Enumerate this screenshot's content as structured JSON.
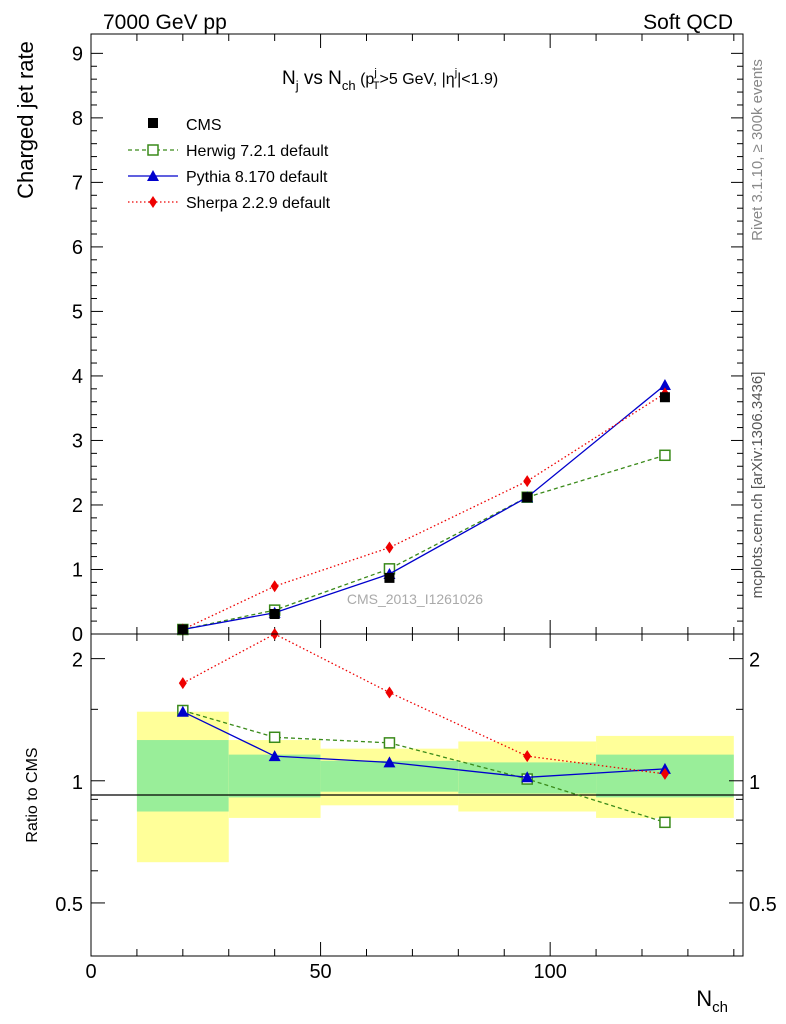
{
  "header": {
    "left": "7000 GeV pp",
    "right": "Soft QCD"
  },
  "side_labels": {
    "rivet": "Rivet 3.1.10, ≥ 300k events",
    "mcplots": "mcplots.cern.ch [arXiv:1306.3436]"
  },
  "watermark": "CMS_2013_I1261026",
  "title": {
    "n1": "N",
    "n1_sub": "j",
    "vs": " vs N",
    "n2_sub": "ch",
    "cut_open": " (p",
    "cut_sup": "j",
    "cut_sub": "T",
    "cut_mid": ">5 GeV, |η",
    "cut_sup2": "j",
    "cut_close": "|<1.9)"
  },
  "colors": {
    "cms": "#000000",
    "herwig": "#3a8a1a",
    "pythia": "#0000cc",
    "sherpa": "#ee0000",
    "band_outer": "#ffff99",
    "band_inner": "#99ee99"
  },
  "chart_data": [
    {
      "type": "line",
      "panel": "main",
      "ylabel": "Charged jet rate",
      "xlim": [
        0,
        142
      ],
      "ylim": [
        0,
        9.3
      ],
      "yticks": [
        0,
        1,
        2,
        3,
        4,
        5,
        6,
        7,
        8,
        9
      ],
      "x": [
        20,
        40,
        65,
        95,
        125
      ],
      "series": [
        {
          "key": "cms",
          "name": "CMS",
          "values": [
            0.07,
            0.31,
            0.87,
            2.12,
            3.67
          ]
        },
        {
          "key": "herwig",
          "name": "Herwig 7.2.1 default",
          "values": [
            0.07,
            0.37,
            1.01,
            2.12,
            2.77
          ]
        },
        {
          "key": "pythia",
          "name": "Pythia 8.170 default",
          "values": [
            0.07,
            0.33,
            0.93,
            2.12,
            3.86
          ]
        },
        {
          "key": "sherpa",
          "name": "Sherpa 2.2.9 default",
          "values": [
            0.07,
            0.74,
            1.34,
            2.37,
            3.73
          ]
        }
      ]
    },
    {
      "type": "line",
      "panel": "ratio",
      "ylabel": "Ratio to CMS",
      "xlabel": "N",
      "xlabel_sub": "ch",
      "xlim": [
        0,
        142
      ],
      "ylim": [
        0.37,
        2.3
      ],
      "yticks": [
        0.5,
        1,
        2
      ],
      "xticks": [
        0,
        50,
        100
      ],
      "x": [
        20,
        40,
        65,
        95,
        125
      ],
      "bins": [
        [
          10,
          30
        ],
        [
          30,
          50
        ],
        [
          50,
          80
        ],
        [
          80,
          110
        ],
        [
          110,
          140
        ]
      ],
      "band_outer": [
        [
          0.63,
          1.48
        ],
        [
          0.81,
          1.26
        ],
        [
          0.87,
          1.2
        ],
        [
          0.84,
          1.25
        ],
        [
          0.81,
          1.29
        ]
      ],
      "band_inner": [
        [
          0.84,
          1.26
        ],
        [
          0.91,
          1.16
        ],
        [
          0.94,
          1.12
        ],
        [
          0.93,
          1.11
        ],
        [
          0.91,
          1.16
        ]
      ],
      "series": [
        {
          "key": "herwig",
          "name": "Herwig 7.2.1 default",
          "values": [
            1.49,
            1.28,
            1.24,
            1.01,
            0.79
          ]
        },
        {
          "key": "pythia",
          "name": "Pythia 8.170 default",
          "values": [
            1.48,
            1.15,
            1.11,
            1.02,
            1.07
          ]
        },
        {
          "key": "sherpa",
          "name": "Sherpa 2.2.9 default",
          "values": [
            1.74,
            2.3,
            1.65,
            1.15,
            1.04
          ]
        }
      ]
    }
  ]
}
